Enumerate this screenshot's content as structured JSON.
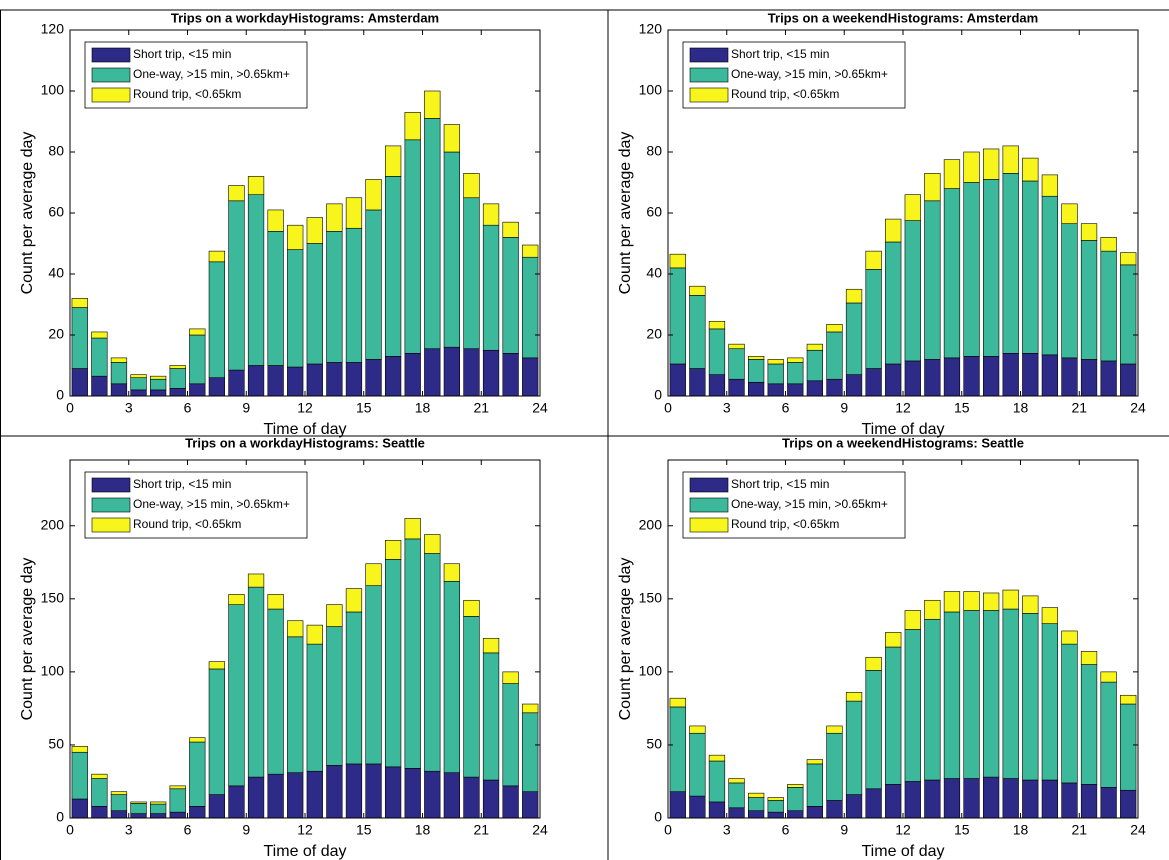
{
  "chart_data": [
    {
      "type": "histogram",
      "stacked": true,
      "title": "Trips on a workdayHistograms: Amsterdam",
      "xlabel": "Time of day",
      "ylabel": "Count per average day",
      "bins": [
        0,
        1,
        2,
        3,
        4,
        5,
        6,
        7,
        8,
        9,
        10,
        11,
        12,
        13,
        14,
        15,
        16,
        17,
        18,
        19,
        20,
        21,
        22,
        23,
        24
      ],
      "xlim": [
        0,
        24
      ],
      "xticks": [
        0,
        3,
        6,
        9,
        12,
        15,
        18,
        21,
        24
      ],
      "ylim": [
        0,
        120
      ],
      "yticks": [
        0,
        20,
        40,
        60,
        80,
        100,
        120
      ],
      "legend": "upper left",
      "series": [
        {
          "name": "Short trip, <15 min",
          "color": "#2e2a87",
          "values": [
            9,
            6.5,
            4,
            2,
            2,
            2.5,
            4,
            6,
            8.5,
            10,
            10,
            9.5,
            10.5,
            11,
            11,
            12,
            13,
            14,
            15.5,
            16,
            15.5,
            15,
            14,
            12.5
          ]
        },
        {
          "name": "One-way, >15 min, >0.65km+",
          "color": "#3cb99a",
          "values": [
            20,
            12.5,
            7,
            4,
            3.5,
            6.5,
            16,
            38,
            55.5,
            56,
            44,
            38.5,
            39.5,
            43,
            44,
            49,
            59,
            70,
            75.5,
            64,
            49.5,
            41,
            38,
            33
          ]
        },
        {
          "name": "Round trip, <0.65km",
          "color": "#f7f51c",
          "values": [
            3,
            2,
            1.5,
            1,
            1,
            1,
            2,
            3.5,
            5,
            6,
            7,
            8,
            8.5,
            9,
            10,
            10,
            10,
            9,
            9,
            9,
            8,
            7,
            5,
            4
          ]
        }
      ]
    },
    {
      "type": "histogram",
      "stacked": true,
      "title": "Trips on a weekendHistograms: Amsterdam",
      "xlabel": "Time of day",
      "ylabel": "Count per average day",
      "bins": [
        0,
        1,
        2,
        3,
        4,
        5,
        6,
        7,
        8,
        9,
        10,
        11,
        12,
        13,
        14,
        15,
        16,
        17,
        18,
        19,
        20,
        21,
        22,
        23,
        24
      ],
      "xlim": [
        0,
        24
      ],
      "xticks": [
        0,
        3,
        6,
        9,
        12,
        15,
        18,
        21,
        24
      ],
      "ylim": [
        0,
        120
      ],
      "yticks": [
        0,
        20,
        40,
        60,
        80,
        100,
        120
      ],
      "legend": "upper left",
      "series": [
        {
          "name": "Short trip, <15 min",
          "color": "#2e2a87",
          "values": [
            10.5,
            9,
            7,
            5.5,
            4.5,
            4,
            4,
            5,
            5.5,
            7,
            9,
            10.5,
            11.5,
            12,
            12.5,
            13,
            13,
            14,
            14,
            13.5,
            12.5,
            12,
            11.5,
            10.5
          ]
        },
        {
          "name": "One-way, >15 min, >0.65km+",
          "color": "#3cb99a",
          "values": [
            31.5,
            24,
            15,
            10,
            7.5,
            6.5,
            7,
            10,
            15.5,
            23.5,
            32.5,
            40,
            46,
            52,
            55.5,
            57,
            58,
            59,
            56.5,
            52,
            44,
            39,
            36,
            32.5
          ]
        },
        {
          "name": "Round trip, <0.65km",
          "color": "#f7f51c",
          "values": [
            4.5,
            3,
            2.5,
            1.5,
            1,
            1.5,
            1.5,
            2,
            2.5,
            4.5,
            6,
            7.5,
            8.5,
            9,
            9.5,
            10,
            10,
            9,
            7.5,
            7,
            6.5,
            5.5,
            4.5,
            4
          ]
        }
      ]
    },
    {
      "type": "histogram",
      "stacked": true,
      "title": "Trips on a workdayHistograms: Seattle",
      "xlabel": "Time of day",
      "ylabel": "Count per average day",
      "bins": [
        0,
        1,
        2,
        3,
        4,
        5,
        6,
        7,
        8,
        9,
        10,
        11,
        12,
        13,
        14,
        15,
        16,
        17,
        18,
        19,
        20,
        21,
        22,
        23,
        24
      ],
      "xlim": [
        0,
        24
      ],
      "xticks": [
        0,
        3,
        6,
        9,
        12,
        15,
        18,
        21,
        24
      ],
      "ylim": [
        0,
        245
      ],
      "yticks": [
        0,
        50,
        100,
        150,
        200
      ],
      "legend": "upper left",
      "series": [
        {
          "name": "Short trip, <15 min",
          "color": "#2e2a87",
          "values": [
            13,
            8,
            5,
            3,
            3,
            4,
            8,
            16,
            22,
            28,
            30,
            31,
            32,
            36,
            37,
            37,
            35,
            34,
            32,
            31,
            28,
            26,
            22,
            18
          ]
        },
        {
          "name": "One-way, >15 min, >0.65km+",
          "color": "#3cb99a",
          "values": [
            32,
            19,
            11,
            7,
            6.5,
            16,
            44,
            86,
            124,
            130,
            113,
            93,
            87,
            95,
            104,
            122,
            142,
            157,
            149,
            131,
            110,
            87,
            70,
            54
          ]
        },
        {
          "name": "Round trip, <0.65km",
          "color": "#f7f51c",
          "values": [
            4,
            3,
            2,
            1,
            1.5,
            2,
            3,
            5,
            7,
            9,
            10,
            11,
            13,
            15,
            16,
            15,
            13,
            14,
            13,
            12,
            11,
            10,
            8,
            6
          ]
        }
      ]
    },
    {
      "type": "histogram",
      "stacked": true,
      "title": "Trips on a weekendHistograms: Seattle",
      "xlabel": "Time of day",
      "ylabel": "Count per average day",
      "bins": [
        0,
        1,
        2,
        3,
        4,
        5,
        6,
        7,
        8,
        9,
        10,
        11,
        12,
        13,
        14,
        15,
        16,
        17,
        18,
        19,
        20,
        21,
        22,
        23,
        24
      ],
      "xlim": [
        0,
        24
      ],
      "xticks": [
        0,
        3,
        6,
        9,
        12,
        15,
        18,
        21,
        24
      ],
      "ylim": [
        0,
        245
      ],
      "yticks": [
        0,
        50,
        100,
        150,
        200
      ],
      "legend": "upper left",
      "series": [
        {
          "name": "Short trip, <15 min",
          "color": "#2e2a87",
          "values": [
            18,
            15,
            11,
            7,
            5,
            4,
            5,
            8,
            12,
            16,
            20,
            23,
            25,
            26,
            27,
            27,
            28,
            27,
            26,
            26,
            24,
            23,
            21,
            19
          ]
        },
        {
          "name": "One-way, >15 min, >0.65km+",
          "color": "#3cb99a",
          "values": [
            58,
            43,
            28,
            17,
            9,
            8,
            16,
            29,
            46,
            64,
            81,
            94,
            104,
            110,
            114,
            115,
            114,
            116,
            114,
            107,
            95,
            82,
            72,
            59
          ]
        },
        {
          "name": "Round trip, <0.65km",
          "color": "#f7f51c",
          "values": [
            6,
            5,
            4,
            3,
            3,
            2,
            2,
            3,
            5,
            6,
            9,
            10,
            13,
            13,
            14,
            13,
            12,
            13,
            12,
            11,
            9,
            9,
            7,
            6
          ]
        }
      ]
    }
  ]
}
